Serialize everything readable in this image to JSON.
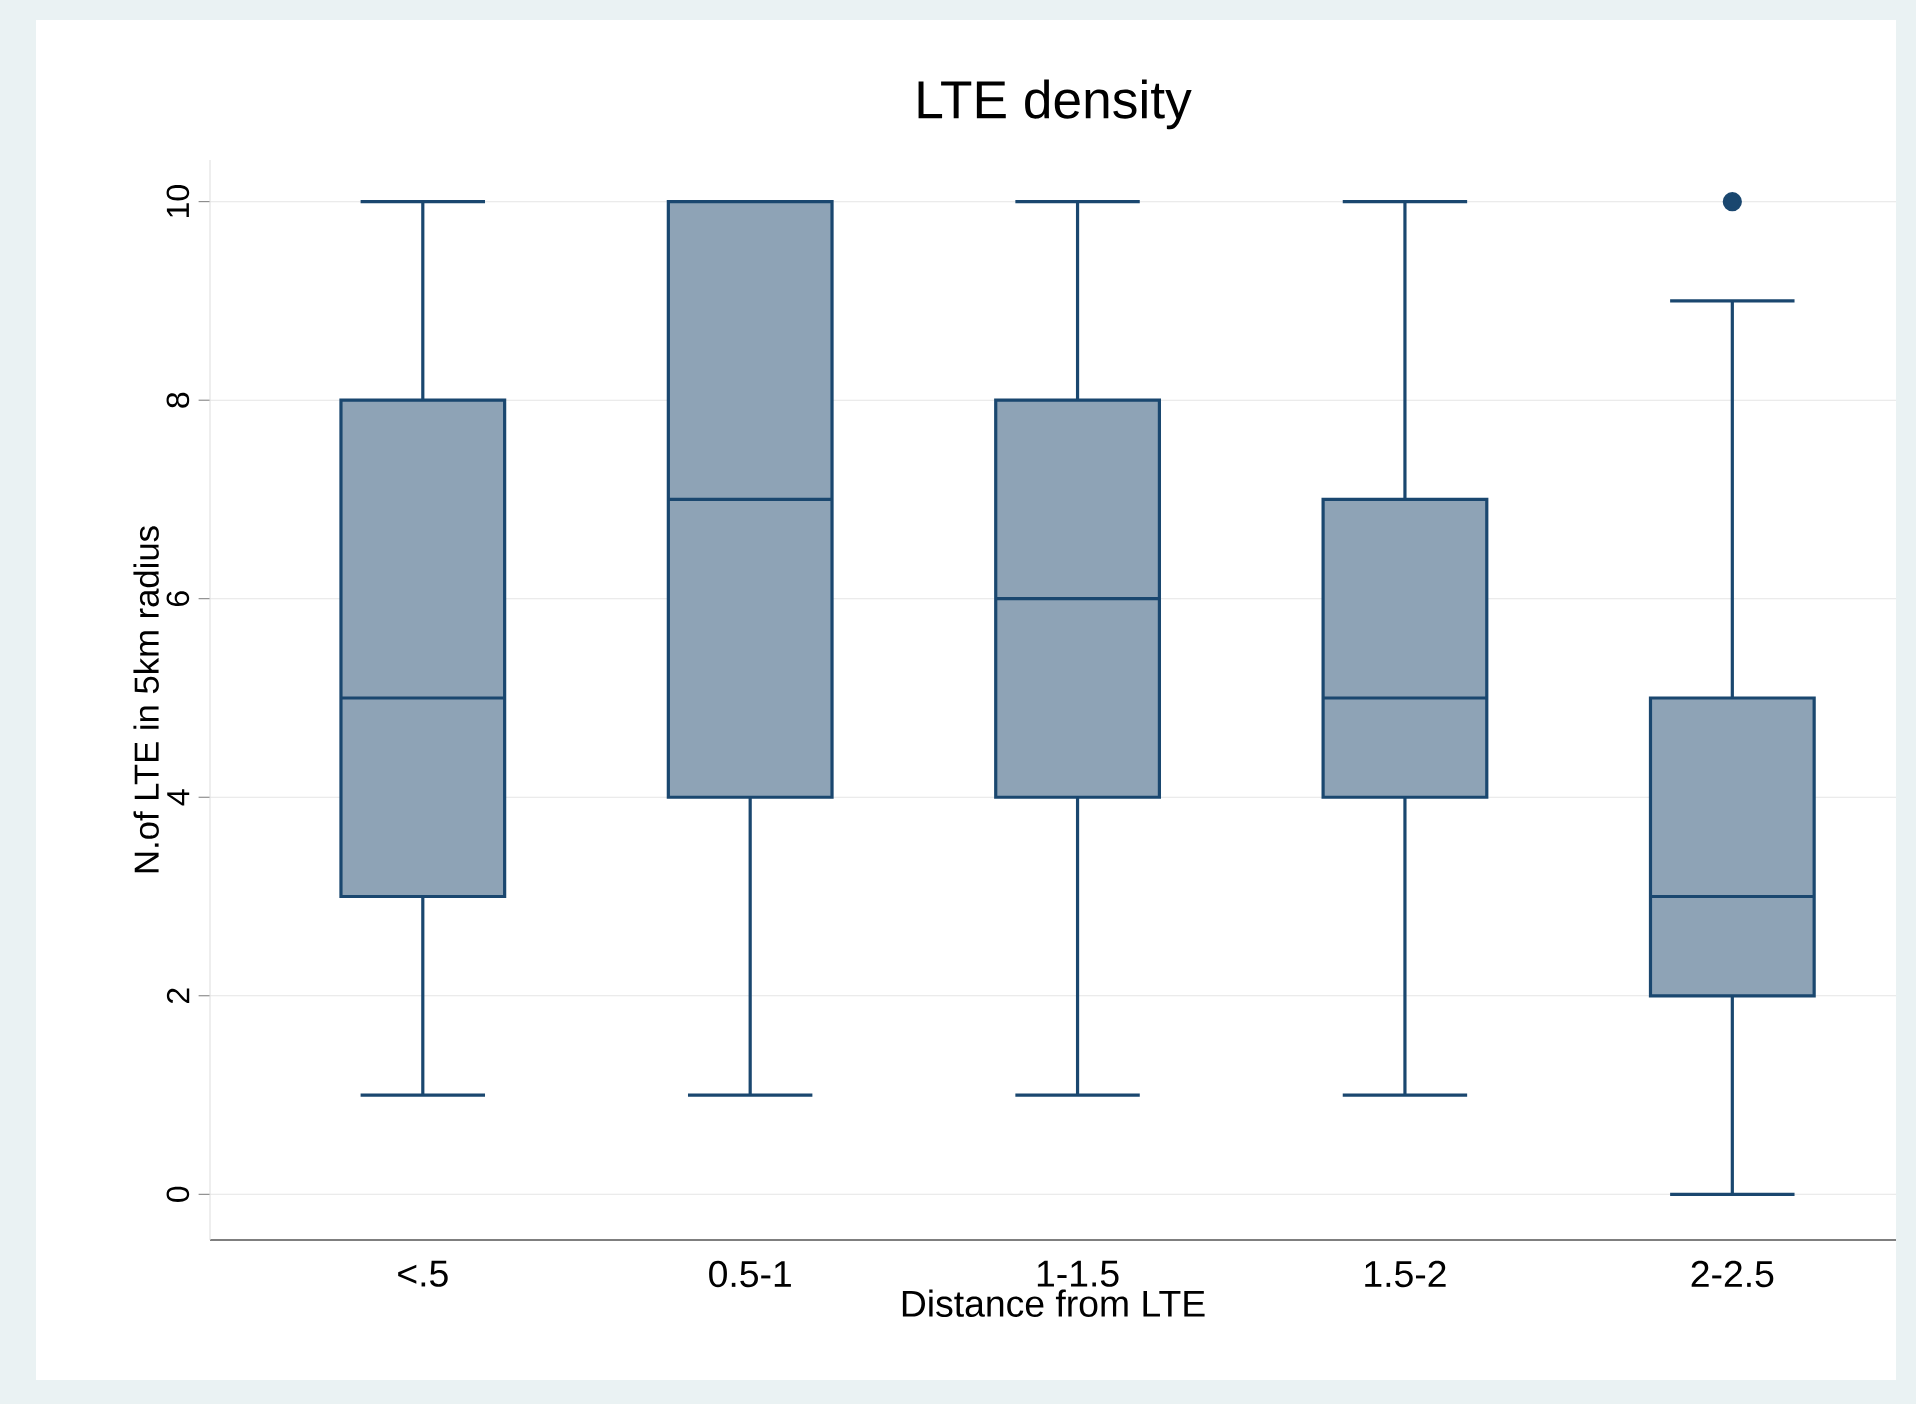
{
  "chart_data": {
    "type": "box",
    "title": "LTE density",
    "xlabel": "Distance from LTE",
    "ylabel": "N.of LTE in 5km radius",
    "categories": [
      "<.5",
      "0.5-1",
      "1-1.5",
      "1.5-2",
      "2-2.5"
    ],
    "boxes": [
      {
        "low": 1,
        "q1": 3,
        "median": 5,
        "q3": 8,
        "high": 10
      },
      {
        "low": 1,
        "q1": 4,
        "median": 7,
        "q3": 10,
        "high": 10
      },
      {
        "low": 1,
        "q1": 4,
        "median": 6,
        "q3": 8,
        "high": 10
      },
      {
        "low": 1,
        "q1": 4,
        "median": 5,
        "q3": 7,
        "high": 10
      },
      {
        "low": 0,
        "q1": 2,
        "median": 3,
        "q3": 5,
        "high": 9,
        "outliers": [
          10
        ]
      }
    ],
    "color": "#8ea3b6",
    "ylim": [
      -0.46,
      10.42
    ],
    "yticks": [
      0,
      2,
      4,
      6,
      8,
      10
    ],
    "grid": "y"
  }
}
